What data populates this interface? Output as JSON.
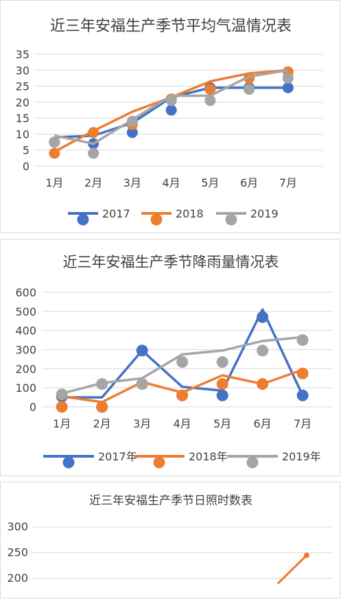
{
  "chart_data": [
    {
      "type": "line",
      "title": "近三年安福生产季节平均气温情况表",
      "categories": [
        "1月",
        "2月",
        "3月",
        "4月",
        "5月",
        "6月",
        "7月"
      ],
      "ylim": [
        0,
        35
      ],
      "yticks": [
        0,
        5,
        10,
        15,
        20,
        25,
        30,
        35
      ],
      "grid": true,
      "legend": "bottom",
      "series": [
        {
          "name": "2017",
          "color": "#4472c4",
          "line": [
            9,
            9.5,
            13.5,
            21.5,
            24.5,
            24.5,
            24.5
          ],
          "points": [
            7.5,
            7,
            10.5,
            17.5,
            24.5,
            24.5,
            24.5
          ]
        },
        {
          "name": "2018",
          "color": "#ed7d31",
          "line": [
            4.5,
            11,
            17,
            21.5,
            26.5,
            29,
            30
          ],
          "points": [
            4,
            10.5,
            13,
            21,
            24,
            27.5,
            29.5
          ]
        },
        {
          "name": "2019",
          "color": "#a5a5a5",
          "line": [
            9.5,
            7,
            14.5,
            22,
            22,
            28,
            30
          ],
          "points": [
            7.5,
            4,
            14,
            20.5,
            20.5,
            24,
            27.5
          ]
        }
      ]
    },
    {
      "type": "line",
      "title": "近三年安福生产季节降雨量情况表",
      "categories": [
        "1月",
        "2月",
        "3月",
        "4月",
        "5月",
        "6月",
        "7月"
      ],
      "ylim": [
        0,
        600
      ],
      "yticks": [
        0,
        100,
        200,
        300,
        400,
        500,
        600
      ],
      "grid": true,
      "legend": "bottom",
      "series": [
        {
          "name": "2017年",
          "color": "#4472c4",
          "line": [
            50,
            50,
            295,
            105,
            85,
            510,
            60
          ],
          "points": [
            55,
            0,
            295,
            60,
            60,
            470,
            60
          ]
        },
        {
          "name": "2018年",
          "color": "#ed7d31",
          "line": [
            55,
            25,
            130,
            75,
            165,
            120,
            195
          ],
          "points": [
            0,
            0,
            120,
            60,
            120,
            120,
            175
          ]
        },
        {
          "name": "2019年",
          "color": "#a5a5a5",
          "line": [
            70,
            125,
            150,
            275,
            295,
            345,
            365
          ],
          "points": [
            65,
            120,
            120,
            235,
            235,
            295,
            350
          ]
        }
      ]
    },
    {
      "type": "line",
      "title": "近三年安福生产季节日照时数表",
      "yticks": [
        200,
        250,
        300
      ],
      "grid": true,
      "series": [
        {
          "color": "#ed7d31",
          "line": [
            190,
            245
          ],
          "points": [
            245
          ]
        }
      ]
    }
  ]
}
